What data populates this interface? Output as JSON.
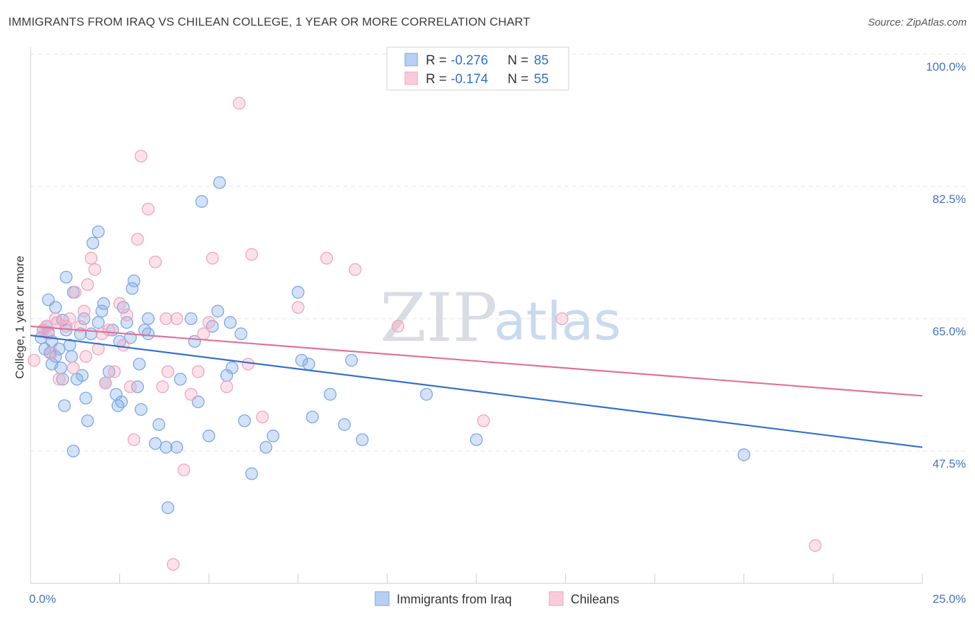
{
  "header": {
    "title": "IMMIGRANTS FROM IRAQ VS CHILEAN COLLEGE, 1 YEAR OR MORE CORRELATION CHART",
    "source": "Source: ZipAtlas.com"
  },
  "watermark": {
    "zip": "ZIP",
    "atlas": "atlas"
  },
  "chart_data": {
    "type": "scatter",
    "title": "IMMIGRANTS FROM IRAQ VS CHILEAN COLLEGE, 1 YEAR OR MORE CORRELATION CHART",
    "xlabel": "",
    "ylabel": "College, 1 year or more",
    "xlim": [
      0,
      25
    ],
    "ylim": [
      30,
      100
    ],
    "x_tick_labels": [
      "0.0%",
      "25.0%"
    ],
    "y_ticks": [
      47.5,
      65.0,
      82.5,
      100.0
    ],
    "y_tick_labels": [
      "47.5%",
      "65.0%",
      "82.5%",
      "100.0%"
    ],
    "grid": true,
    "legend_position": "top-center",
    "series": [
      {
        "name": "Immigrants from Iraq",
        "color": "#7aa7e8",
        "line_color": "#2f6fd1",
        "r_label": "R =",
        "r_value": "-0.276",
        "n_label": "N =",
        "n_value": "85",
        "trend": {
          "x": [
            0,
            25
          ],
          "y": [
            62.8,
            48.0
          ]
        },
        "points": [
          [
            0.3,
            62.5
          ],
          [
            0.35,
            63.5
          ],
          [
            0.4,
            61.0
          ],
          [
            0.45,
            64.0
          ],
          [
            0.5,
            63.2
          ],
          [
            0.5,
            67.5
          ],
          [
            0.55,
            60.5
          ],
          [
            0.6,
            59.0
          ],
          [
            0.6,
            62.0
          ],
          [
            0.7,
            66.5
          ],
          [
            0.7,
            60.0
          ],
          [
            0.8,
            61.0
          ],
          [
            0.85,
            58.5
          ],
          [
            0.9,
            57.0
          ],
          [
            0.9,
            64.8
          ],
          [
            0.95,
            53.5
          ],
          [
            1.0,
            63.5
          ],
          [
            1.0,
            70.5
          ],
          [
            1.1,
            61.5
          ],
          [
            1.15,
            60.0
          ],
          [
            1.2,
            68.5
          ],
          [
            1.3,
            57.0
          ],
          [
            1.4,
            63.0
          ],
          [
            1.45,
            57.5
          ],
          [
            1.5,
            65.0
          ],
          [
            1.55,
            54.5
          ],
          [
            1.6,
            51.5
          ],
          [
            1.7,
            63.0
          ],
          [
            1.75,
            75.0
          ],
          [
            1.9,
            76.5
          ],
          [
            1.9,
            64.5
          ],
          [
            2.0,
            66.0
          ],
          [
            2.05,
            67.0
          ],
          [
            2.1,
            56.5
          ],
          [
            2.2,
            58.0
          ],
          [
            2.3,
            63.5
          ],
          [
            2.4,
            55.0
          ],
          [
            2.45,
            53.5
          ],
          [
            2.5,
            62.0
          ],
          [
            2.55,
            54.0
          ],
          [
            2.6,
            66.5
          ],
          [
            2.7,
            64.5
          ],
          [
            2.8,
            62.5
          ],
          [
            2.85,
            69.0
          ],
          [
            2.9,
            70.0
          ],
          [
            3.0,
            56.0
          ],
          [
            3.05,
            59.0
          ],
          [
            3.1,
            53.0
          ],
          [
            3.2,
            63.5
          ],
          [
            3.3,
            65.0
          ],
          [
            3.3,
            63.0
          ],
          [
            3.5,
            48.5
          ],
          [
            3.6,
            51.0
          ],
          [
            3.8,
            48.0
          ],
          [
            3.85,
            40.0
          ],
          [
            4.1,
            48.0
          ],
          [
            4.2,
            57.0
          ],
          [
            4.5,
            65.0
          ],
          [
            4.6,
            62.0
          ],
          [
            4.7,
            54.0
          ],
          [
            4.8,
            80.5
          ],
          [
            5.0,
            49.5
          ],
          [
            5.1,
            64.0
          ],
          [
            5.25,
            66.0
          ],
          [
            5.3,
            83.0
          ],
          [
            5.5,
            57.5
          ],
          [
            5.6,
            64.5
          ],
          [
            5.65,
            58.5
          ],
          [
            5.9,
            63.0
          ],
          [
            6.0,
            51.5
          ],
          [
            6.2,
            44.5
          ],
          [
            6.6,
            48.0
          ],
          [
            6.8,
            49.5
          ],
          [
            7.5,
            68.5
          ],
          [
            7.6,
            59.5
          ],
          [
            7.8,
            59.0
          ],
          [
            7.9,
            52.0
          ],
          [
            8.4,
            55.0
          ],
          [
            8.8,
            51.0
          ],
          [
            9.0,
            59.5
          ],
          [
            9.3,
            49.0
          ],
          [
            11.1,
            55.0
          ],
          [
            12.5,
            49.0
          ],
          [
            20.0,
            47.0
          ],
          [
            1.2,
            47.5
          ]
        ]
      },
      {
        "name": "Chileans",
        "color": "#f2a3bd",
        "line_color": "#e07096",
        "r_label": "R =",
        "r_value": "-0.174",
        "n_label": "N =",
        "n_value": "55",
        "trend": {
          "x": [
            0,
            25
          ],
          "y": [
            64.0,
            54.8
          ]
        },
        "points": [
          [
            0.1,
            59.5
          ],
          [
            0.35,
            63.5
          ],
          [
            0.45,
            64.0
          ],
          [
            0.5,
            63.0
          ],
          [
            0.6,
            60.5
          ],
          [
            0.7,
            65.0
          ],
          [
            0.75,
            64.5
          ],
          [
            0.8,
            57.0
          ],
          [
            1.0,
            64.0
          ],
          [
            1.1,
            65.0
          ],
          [
            1.2,
            58.5
          ],
          [
            1.25,
            68.5
          ],
          [
            1.4,
            64.0
          ],
          [
            1.5,
            66.0
          ],
          [
            1.55,
            60.0
          ],
          [
            1.6,
            69.5
          ],
          [
            1.7,
            73.0
          ],
          [
            1.8,
            71.5
          ],
          [
            1.9,
            61.0
          ],
          [
            2.0,
            63.0
          ],
          [
            2.1,
            56.5
          ],
          [
            2.2,
            63.5
          ],
          [
            2.35,
            58.0
          ],
          [
            2.5,
            67.0
          ],
          [
            2.6,
            61.5
          ],
          [
            2.7,
            65.5
          ],
          [
            2.8,
            56.0
          ],
          [
            2.9,
            49.0
          ],
          [
            3.0,
            75.5
          ],
          [
            3.1,
            86.5
          ],
          [
            3.3,
            79.5
          ],
          [
            3.5,
            72.5
          ],
          [
            3.7,
            56.0
          ],
          [
            3.8,
            65.0
          ],
          [
            3.85,
            58.0
          ],
          [
            4.0,
            32.5
          ],
          [
            4.1,
            65.0
          ],
          [
            4.3,
            45.0
          ],
          [
            4.5,
            55.0
          ],
          [
            4.7,
            58.0
          ],
          [
            4.85,
            63.0
          ],
          [
            5.0,
            64.5
          ],
          [
            5.1,
            73.0
          ],
          [
            5.5,
            56.0
          ],
          [
            5.85,
            93.5
          ],
          [
            6.1,
            59.0
          ],
          [
            6.2,
            73.5
          ],
          [
            6.5,
            52.0
          ],
          [
            7.5,
            66.5
          ],
          [
            8.3,
            73.0
          ],
          [
            9.1,
            71.5
          ],
          [
            10.3,
            64.0
          ],
          [
            12.7,
            51.5
          ],
          [
            14.9,
            65.0
          ],
          [
            22.0,
            35.0
          ]
        ]
      }
    ]
  }
}
